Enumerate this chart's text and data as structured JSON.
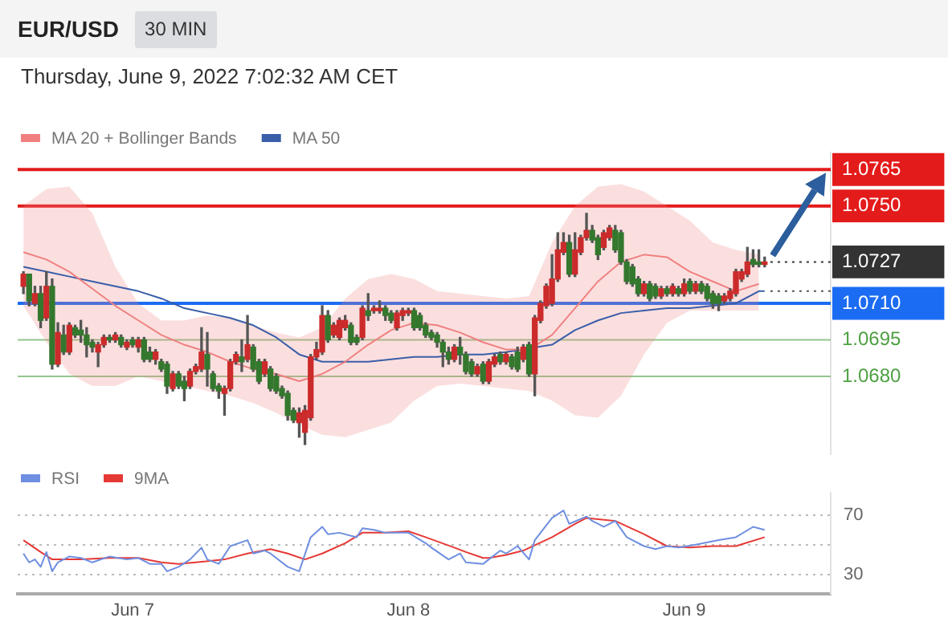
{
  "chart_data": [
    {
      "type": "candlestick",
      "title": "EUR/USD",
      "subtitle": "30 MIN",
      "annotations": [
        "Thursday, June 9, 2022 7:02:32 AM CET"
      ],
      "x": [
        "2022-06-06T14:30",
        "2022-06-06T15:00",
        "2022-06-06T15:30",
        "2022-06-06T16:00",
        "2022-06-06T16:30",
        "2022-06-06T17:00",
        "2022-06-06T17:30",
        "2022-06-06T18:00",
        "2022-06-06T18:30",
        "2022-06-06T19:00",
        "2022-06-06T19:30",
        "2022-06-06T20:00",
        "2022-06-06T20:30",
        "2022-06-06T21:00",
        "2022-06-06T21:30",
        "2022-06-06T22:00",
        "2022-06-06T22:30",
        "2022-06-06T23:00",
        "2022-06-06T23:30",
        "2022-06-07T00:00",
        "2022-06-07T00:30",
        "2022-06-07T01:00",
        "2022-06-07T01:30",
        "2022-06-07T02:00",
        "2022-06-07T02:30",
        "2022-06-07T03:00",
        "2022-06-07T03:30",
        "2022-06-07T04:00",
        "2022-06-07T04:30",
        "2022-06-07T05:00",
        "2022-06-07T05:30",
        "2022-06-07T06:00",
        "2022-06-07T06:30",
        "2022-06-07T07:00",
        "2022-06-07T07:30",
        "2022-06-07T08:00",
        "2022-06-07T08:30",
        "2022-06-07T09:00",
        "2022-06-07T09:30",
        "2022-06-07T10:00",
        "2022-06-07T10:30",
        "2022-06-07T11:00",
        "2022-06-07T11:30",
        "2022-06-07T12:00",
        "2022-06-07T12:30",
        "2022-06-07T13:00",
        "2022-06-07T13:30",
        "2022-06-07T14:00",
        "2022-06-07T14:30",
        "2022-06-07T15:00",
        "2022-06-07T15:30",
        "2022-06-07T16:00",
        "2022-06-07T16:30",
        "2022-06-07T17:00",
        "2022-06-07T17:30",
        "2022-06-07T18:00",
        "2022-06-07T18:30",
        "2022-06-07T19:00",
        "2022-06-07T19:30",
        "2022-06-07T20:00",
        "2022-06-07T20:30",
        "2022-06-07T21:00",
        "2022-06-07T21:30",
        "2022-06-07T22:00",
        "2022-06-07T22:30",
        "2022-06-07T23:00",
        "2022-06-07T23:30",
        "2022-06-08T00:00",
        "2022-06-08T00:30",
        "2022-06-08T01:00",
        "2022-06-08T01:30",
        "2022-06-08T02:00",
        "2022-06-08T02:30",
        "2022-06-08T03:00",
        "2022-06-08T03:30",
        "2022-06-08T04:00",
        "2022-06-08T04:30",
        "2022-06-08T05:00",
        "2022-06-08T05:30",
        "2022-06-08T06:00",
        "2022-06-08T06:30",
        "2022-06-08T07:00",
        "2022-06-08T07:30",
        "2022-06-08T08:00",
        "2022-06-08T08:30",
        "2022-06-08T09:00",
        "2022-06-08T09:30",
        "2022-06-08T10:00",
        "2022-06-08T10:30",
        "2022-06-08T11:00",
        "2022-06-08T11:30",
        "2022-06-08T12:00",
        "2022-06-08T12:30",
        "2022-06-08T13:00",
        "2022-06-08T13:30",
        "2022-06-08T14:00",
        "2022-06-08T14:30",
        "2022-06-08T15:00",
        "2022-06-08T15:30",
        "2022-06-08T16:00",
        "2022-06-08T16:30",
        "2022-06-08T17:00",
        "2022-06-08T17:30",
        "2022-06-08T18:00",
        "2022-06-08T18:30",
        "2022-06-08T19:00",
        "2022-06-08T19:30",
        "2022-06-08T20:00",
        "2022-06-08T20:30",
        "2022-06-08T21:00",
        "2022-06-08T21:30",
        "2022-06-08T22:00",
        "2022-06-08T22:30",
        "2022-06-08T23:00",
        "2022-06-08T23:30",
        "2022-06-09T00:00",
        "2022-06-09T00:30",
        "2022-06-09T01:00",
        "2022-06-09T01:30",
        "2022-06-09T02:00",
        "2022-06-09T02:30",
        "2022-06-09T03:00",
        "2022-06-09T03:30",
        "2022-06-09T04:00",
        "2022-06-09T04:30",
        "2022-06-09T05:00",
        "2022-06-09T05:30",
        "2022-06-09T06:00",
        "2022-06-09T06:30",
        "2022-06-09T07:00"
      ],
      "ohlc": [
        [
          1.0717,
          1.0723,
          1.0714,
          1.0722
        ],
        [
          1.0722,
          1.0722,
          1.0709,
          1.0711
        ],
        [
          1.071,
          1.0717,
          1.0709,
          1.0714
        ],
        [
          1.0714,
          1.0717,
          1.07,
          1.0703
        ],
        [
          1.0704,
          1.0723,
          1.0703,
          1.0717
        ],
        [
          1.0717,
          1.072,
          1.0683,
          1.0685
        ],
        [
          1.0685,
          1.0702,
          1.0684,
          1.0698
        ],
        [
          1.0697,
          1.0701,
          1.0689,
          1.069
        ],
        [
          1.069,
          1.0702,
          1.0689,
          1.0701
        ],
        [
          1.07,
          1.0701,
          1.0696,
          1.0697
        ],
        [
          1.0699,
          1.0703,
          1.0694,
          1.0697
        ],
        [
          1.0697,
          1.07,
          1.0688,
          1.0693
        ],
        [
          1.0694,
          1.0695,
          1.069,
          1.0692
        ],
        [
          1.069,
          1.0694,
          1.0684,
          1.0693
        ],
        [
          1.0693,
          1.0697,
          1.0692,
          1.0696
        ],
        [
          1.0696,
          1.0697,
          1.0694,
          1.0695
        ],
        [
          1.0695,
          1.0698,
          1.0694,
          1.0697
        ],
        [
          1.0696,
          1.0697,
          1.0692,
          1.0693
        ],
        [
          1.0692,
          1.0695,
          1.0691,
          1.0694
        ],
        [
          1.0695,
          1.0696,
          1.0692,
          1.0693
        ],
        [
          1.0692,
          1.0696,
          1.069,
          1.0695
        ],
        [
          1.0695,
          1.0696,
          1.0686,
          1.0687
        ],
        [
          1.069,
          1.0692,
          1.0686,
          1.0687
        ],
        [
          1.0687,
          1.0691,
          1.0685,
          1.069
        ],
        [
          1.0686,
          1.0687,
          1.0682,
          1.0683
        ],
        [
          1.0685,
          1.0686,
          1.0673,
          1.0676
        ],
        [
          1.0675,
          1.0682,
          1.0674,
          1.0681
        ],
        [
          1.0681,
          1.0682,
          1.0675,
          1.0676
        ],
        [
          1.0678,
          1.068,
          1.067,
          1.0675
        ],
        [
          1.0676,
          1.0683,
          1.0675,
          1.0682
        ],
        [
          1.0682,
          1.0685,
          1.0681,
          1.0684
        ],
        [
          1.0683,
          1.07,
          1.0682,
          1.069
        ],
        [
          1.0689,
          1.0698,
          1.0676,
          1.0683
        ],
        [
          1.0681,
          1.0682,
          1.0674,
          1.0675
        ],
        [
          1.0676,
          1.0677,
          1.0671,
          1.0674
        ],
        [
          1.0673,
          1.0676,
          1.0664,
          1.0675
        ],
        [
          1.0675,
          1.0687,
          1.0674,
          1.0686
        ],
        [
          1.0686,
          1.069,
          1.0685,
          1.0689
        ],
        [
          1.0688,
          1.0695,
          1.0682,
          1.0686
        ],
        [
          1.0687,
          1.0705,
          1.0686,
          1.0693
        ],
        [
          1.0692,
          1.0693,
          1.0682,
          1.0683
        ],
        [
          1.0686,
          1.0687,
          1.0677,
          1.0678
        ],
        [
          1.0681,
          1.0687,
          1.068,
          1.0686
        ],
        [
          1.0683,
          1.0684,
          1.0674,
          1.0675
        ],
        [
          1.068,
          1.0681,
          1.0673,
          1.0674
        ],
        [
          1.0675,
          1.0676,
          1.0671,
          1.0672
        ],
        [
          1.0673,
          1.0674,
          1.0662,
          1.0664
        ],
        [
          1.0666,
          1.0667,
          1.0661,
          1.0662
        ],
        [
          1.0661,
          1.0667,
          1.0655,
          1.0665
        ],
        [
          1.0657,
          1.0668,
          1.0652,
          1.0666
        ],
        [
          1.0663,
          1.0689,
          1.0662,
          1.0688
        ],
        [
          1.0688,
          1.0694,
          1.0687,
          1.0691
        ],
        [
          1.069,
          1.0709,
          1.0689,
          1.0705
        ],
        [
          1.0705,
          1.0707,
          1.0694,
          1.0695
        ],
        [
          1.0697,
          1.0702,
          1.0696,
          1.0701
        ],
        [
          1.0696,
          1.0704,
          1.0695,
          1.0703
        ],
        [
          1.07,
          1.0705,
          1.0699,
          1.0703
        ],
        [
          1.0701,
          1.0702,
          1.0693,
          1.0694
        ],
        [
          1.0696,
          1.0697,
          1.0693,
          1.0694
        ],
        [
          1.0696,
          1.0709,
          1.0695,
          1.0708
        ],
        [
          1.0707,
          1.0714,
          1.0703,
          1.0705
        ],
        [
          1.0707,
          1.0709,
          1.0706,
          1.0708
        ],
        [
          1.0707,
          1.0711,
          1.0706,
          1.0708
        ],
        [
          1.0708,
          1.0709,
          1.0703,
          1.0705
        ],
        [
          1.0706,
          1.0707,
          1.0702,
          1.0703
        ],
        [
          1.07,
          1.0707,
          1.0699,
          1.0706
        ],
        [
          1.0705,
          1.0708,
          1.0703,
          1.0707
        ],
        [
          1.0706,
          1.0708,
          1.0705,
          1.0707
        ],
        [
          1.0707,
          1.0708,
          1.0699,
          1.07
        ],
        [
          1.0705,
          1.0706,
          1.0699,
          1.07
        ],
        [
          1.0701,
          1.0702,
          1.0696,
          1.0697
        ],
        [
          1.0698,
          1.0699,
          1.0695,
          1.0696
        ],
        [
          1.0697,
          1.0698,
          1.0692,
          1.0694
        ],
        [
          1.0694,
          1.0695,
          1.0684,
          1.069
        ],
        [
          1.069,
          1.0692,
          1.0685,
          1.0687
        ],
        [
          1.0687,
          1.0693,
          1.0686,
          1.0692
        ],
        [
          1.0692,
          1.0696,
          1.0685,
          1.0689
        ],
        [
          1.0689,
          1.069,
          1.0681,
          1.0682
        ],
        [
          1.0686,
          1.0687,
          1.068,
          1.0681
        ],
        [
          1.0681,
          1.0685,
          1.068,
          1.0684
        ],
        [
          1.0685,
          1.0686,
          1.0677,
          1.0678
        ],
        [
          1.0678,
          1.0687,
          1.0677,
          1.0686
        ],
        [
          1.0685,
          1.0689,
          1.0684,
          1.0688
        ],
        [
          1.0689,
          1.069,
          1.0685,
          1.0686
        ],
        [
          1.0686,
          1.069,
          1.0685,
          1.0689
        ],
        [
          1.0688,
          1.0689,
          1.0683,
          1.0684
        ],
        [
          1.069,
          1.0692,
          1.0682,
          1.0683
        ],
        [
          1.0687,
          1.0693,
          1.0686,
          1.0692
        ],
        [
          1.0693,
          1.0694,
          1.068,
          1.0681
        ],
        [
          1.0681,
          1.0705,
          1.0672,
          1.0704
        ],
        [
          1.0703,
          1.0711,
          1.0702,
          1.071
        ],
        [
          1.0709,
          1.0718,
          1.0708,
          1.0717
        ],
        [
          1.071,
          1.073,
          1.0709,
          1.072
        ],
        [
          1.072,
          1.0739,
          1.0719,
          1.0732
        ],
        [
          1.0731,
          1.0739,
          1.073,
          1.0735
        ],
        [
          1.0735,
          1.0738,
          1.0721,
          1.0722
        ],
        [
          1.0722,
          1.0739,
          1.0721,
          1.0732
        ],
        [
          1.0731,
          1.0738,
          1.073,
          1.0737
        ],
        [
          1.0737,
          1.0747,
          1.0736,
          1.074
        ],
        [
          1.074,
          1.0742,
          1.0735,
          1.0736
        ],
        [
          1.0737,
          1.0738,
          1.0728,
          1.073
        ],
        [
          1.0733,
          1.074,
          1.0732,
          1.0739
        ],
        [
          1.0737,
          1.0742,
          1.0736,
          1.0741
        ],
        [
          1.074,
          1.0742,
          1.0731,
          1.0732
        ],
        [
          1.0739,
          1.074,
          1.0726,
          1.0727
        ],
        [
          1.0727,
          1.0728,
          1.0718,
          1.0719
        ],
        [
          1.0725,
          1.0726,
          1.0717,
          1.0718
        ],
        [
          1.072,
          1.0721,
          1.0713,
          1.0714
        ],
        [
          1.0714,
          1.0719,
          1.0713,
          1.0718
        ],
        [
          1.0718,
          1.0719,
          1.0711,
          1.0712
        ],
        [
          1.0717,
          1.0718,
          1.0712,
          1.0713
        ],
        [
          1.0713,
          1.0717,
          1.0712,
          1.0716
        ],
        [
          1.0716,
          1.0717,
          1.0713,
          1.0714
        ],
        [
          1.0714,
          1.0718,
          1.0713,
          1.0717
        ],
        [
          1.0716,
          1.0717,
          1.0713,
          1.0714
        ],
        [
          1.0714,
          1.072,
          1.0713,
          1.0718
        ],
        [
          1.0719,
          1.072,
          1.0714,
          1.0715
        ],
        [
          1.0715,
          1.0719,
          1.0714,
          1.0718
        ],
        [
          1.0718,
          1.0719,
          1.0714,
          1.0715
        ],
        [
          1.0717,
          1.0718,
          1.0711,
          1.0712
        ],
        [
          1.0714,
          1.0715,
          1.0708,
          1.071
        ],
        [
          1.0713,
          1.0714,
          1.0707,
          1.071
        ],
        [
          1.0711,
          1.0714,
          1.071,
          1.0713
        ],
        [
          1.0712,
          1.0716,
          1.0711,
          1.0715
        ],
        [
          1.0714,
          1.0724,
          1.0713,
          1.0723
        ],
        [
          1.072,
          1.0724,
          1.0719,
          1.0723
        ],
        [
          1.0722,
          1.0733,
          1.0721,
          1.0727
        ],
        [
          1.0728,
          1.0732,
          1.0725,
          1.0726
        ],
        [
          1.0727,
          1.0732,
          1.0725,
          1.0726
        ],
        [
          1.0726,
          1.0729,
          1.0725,
          1.0727
        ]
      ],
      "colors": [
        "#cc2b2b",
        "#34782e",
        "#cc2b2b",
        "#34782e",
        "#cc2b2b",
        "#34782e",
        "#cc2b2b",
        "#34782e",
        "#cc2b2b",
        "#34782e",
        "#34782e",
        "#34782e",
        "#34782e",
        "#cc2b2b",
        "#cc2b2b",
        "#34782e",
        "#cc2b2b",
        "#34782e",
        "#cc2b2b",
        "#34782e",
        "#cc2b2b",
        "#34782e",
        "#34782e",
        "#cc2b2b",
        "#34782e",
        "#34782e",
        "#cc2b2b",
        "#34782e",
        "#34782e",
        "#cc2b2b",
        "#cc2b2b",
        "#cc2b2b",
        "#34782e",
        "#34782e",
        "#34782e",
        "#cc2b2b",
        "#cc2b2b",
        "#cc2b2b",
        "#34782e",
        "#cc2b2b",
        "#34782e",
        "#34782e",
        "#cc2b2b",
        "#34782e",
        "#34782e",
        "#34782e",
        "#34782e",
        "#34782e",
        "#cc2b2b",
        "#cc2b2b",
        "#cc2b2b",
        "#cc2b2b",
        "#cc2b2b",
        "#34782e",
        "#cc2b2b",
        "#cc2b2b",
        "#cc2b2b",
        "#34782e",
        "#34782e",
        "#cc2b2b",
        "#34782e",
        "#cc2b2b",
        "#cc2b2b",
        "#34782e",
        "#34782e",
        "#cc2b2b",
        "#cc2b2b",
        "#cc2b2b",
        "#34782e",
        "#34782e",
        "#34782e",
        "#34782e",
        "#34782e",
        "#34782e",
        "#34782e",
        "#cc2b2b",
        "#34782e",
        "#34782e",
        "#34782e",
        "#cc2b2b",
        "#34782e",
        "#cc2b2b",
        "#cc2b2b",
        "#34782e",
        "#cc2b2b",
        "#34782e",
        "#34782e",
        "#cc2b2b",
        "#34782e",
        "#cc2b2b",
        "#cc2b2b",
        "#cc2b2b",
        "#cc2b2b",
        "#cc2b2b",
        "#cc2b2b",
        "#34782e",
        "#cc2b2b",
        "#cc2b2b",
        "#cc2b2b",
        "#34782e",
        "#34782e",
        "#cc2b2b",
        "#cc2b2b",
        "#34782e",
        "#34782e",
        "#34782e",
        "#34782e",
        "#34782e",
        "#cc2b2b",
        "#34782e",
        "#34782e",
        "#cc2b2b",
        "#34782e",
        "#cc2b2b",
        "#34782e",
        "#cc2b2b",
        "#34782e",
        "#cc2b2b",
        "#34782e",
        "#34782e",
        "#34782e",
        "#34782e",
        "#cc2b2b",
        "#cc2b2b",
        "#cc2b2b",
        "#cc2b2b",
        "#cc2b2b",
        "#34782e",
        "#34782e",
        "#cc2b2b"
      ],
      "series": [
        {
          "name": "MA 20 + Bollinger Bands",
          "type": "line",
          "color": "#f08080",
          "x": [
            "2022-06-06T14:30",
            "2022-06-06T16:30",
            "2022-06-06T18:30",
            "2022-06-06T20:30",
            "2022-06-06T22:30",
            "2022-06-07T00:30",
            "2022-06-07T02:30",
            "2022-06-07T04:30",
            "2022-06-07T06:30",
            "2022-06-07T08:30",
            "2022-06-07T10:30",
            "2022-06-07T12:30",
            "2022-06-07T14:30",
            "2022-06-07T16:30",
            "2022-06-07T18:30",
            "2022-06-07T20:30",
            "2022-06-07T22:30",
            "2022-06-08T00:30",
            "2022-06-08T02:30",
            "2022-06-08T04:30",
            "2022-06-08T06:30",
            "2022-06-08T08:30",
            "2022-06-08T10:30",
            "2022-06-08T12:30",
            "2022-06-08T14:30",
            "2022-06-08T16:30",
            "2022-06-08T18:30",
            "2022-06-08T20:30",
            "2022-06-08T22:30",
            "2022-06-09T00:30",
            "2022-06-09T02:30",
            "2022-06-09T04:30",
            "2022-06-09T06:30"
          ],
          "values": [
            1.0731,
            1.0728,
            1.0723,
            1.0716,
            1.0709,
            1.0703,
            1.0697,
            1.0693,
            1.069,
            1.0686,
            1.0683,
            1.0681,
            1.0678,
            1.0681,
            1.0686,
            1.0693,
            1.0699,
            1.0702,
            1.0701,
            1.0698,
            1.0694,
            1.0691,
            1.0691,
            1.0697,
            1.0708,
            1.0719,
            1.0727,
            1.073,
            1.0729,
            1.0723,
            1.0719,
            1.0715,
            1.0718
          ],
          "upper": [
            1.075,
            1.0757,
            1.0758,
            1.0747,
            1.0725,
            1.071,
            1.0703,
            1.0703,
            1.0705,
            1.0704,
            1.0701,
            1.0698,
            1.0696,
            1.07,
            1.0712,
            1.072,
            1.0722,
            1.072,
            1.0715,
            1.0714,
            1.0713,
            1.0712,
            1.0713,
            1.0735,
            1.075,
            1.0758,
            1.0759,
            1.0756,
            1.075,
            1.0744,
            1.0735,
            1.0732,
            1.073
          ],
          "lower": [
            1.0709,
            1.0694,
            1.0681,
            1.0676,
            1.0676,
            1.068,
            1.0678,
            1.0676,
            1.0674,
            1.0672,
            1.0669,
            1.0665,
            1.066,
            1.0656,
            1.0655,
            1.0658,
            1.0661,
            1.067,
            1.0676,
            1.0677,
            1.0676,
            1.0675,
            1.0674,
            1.067,
            1.0664,
            1.0663,
            1.0672,
            1.0689,
            1.0702,
            1.0707,
            1.0707,
            1.0707,
            1.0707
          ]
        },
        {
          "name": "MA 50",
          "type": "line",
          "color": "#3a5ea8",
          "x": [
            "2022-06-06T14:30",
            "2022-06-06T16:30",
            "2022-06-06T18:30",
            "2022-06-06T20:30",
            "2022-06-06T22:30",
            "2022-06-07T00:30",
            "2022-06-07T02:30",
            "2022-06-07T04:30",
            "2022-06-07T06:30",
            "2022-06-07T08:30",
            "2022-06-07T10:30",
            "2022-06-07T12:30",
            "2022-06-07T14:30",
            "2022-06-07T16:30",
            "2022-06-07T18:30",
            "2022-06-07T20:30",
            "2022-06-07T22:30",
            "2022-06-08T00:30",
            "2022-06-08T02:30",
            "2022-06-08T04:30",
            "2022-06-08T06:30",
            "2022-06-08T08:30",
            "2022-06-08T12:30",
            "2022-06-08T14:30",
            "2022-06-08T16:30",
            "2022-06-08T18:30",
            "2022-06-08T20:30",
            "2022-06-08T22:30",
            "2022-06-09T00:30",
            "2022-06-09T02:30",
            "2022-06-09T04:30",
            "2022-06-09T06:30",
            "2022-06-09T07:00"
          ],
          "values": [
            1.0725,
            1.0723,
            1.0721,
            1.0719,
            1.0717,
            1.0715,
            1.0712,
            1.0708,
            1.0706,
            1.0704,
            1.0701,
            1.0696,
            1.0689,
            1.0686,
            1.0686,
            1.0686,
            1.0687,
            1.0688,
            1.0688,
            1.0689,
            1.0689,
            1.069,
            1.0693,
            1.0699,
            1.0703,
            1.0706,
            1.0707,
            1.0708,
            1.0708,
            1.0709,
            1.071,
            1.0715,
            1.0715
          ]
        },
        {
          "type": "line",
          "color": "#333333",
          "line_style": "dotted",
          "x": [
            "2022-06-09T07:30",
            "2022-06-09T12:45"
          ],
          "values": [
            1.0727,
            1.0727
          ]
        },
        {
          "type": "line",
          "color": "#555555",
          "line_style": "dotted",
          "x": [
            "2022-06-09T07:30",
            "2022-06-09T12:45"
          ],
          "values": [
            1.0715,
            1.0715
          ]
        }
      ],
      "xlim": [
        "2022-06-06T14:00",
        "2022-06-09T12:45"
      ],
      "ylim": [
        1.0648,
        1.0772
      ],
      "yticks": [
        {
          "value": 1.068,
          "label": "1.0680"
        },
        {
          "value": 1.0695,
          "label": "1.0695"
        },
        {
          "value": 1.071,
          "label": "1.0710"
        },
        {
          "value": 1.0727,
          "label": "1.0727"
        },
        {
          "value": 1.075,
          "label": "1.0750"
        },
        {
          "value": 1.0765,
          "label": "1.0765"
        }
      ],
      "ref_lines": [
        {
          "axis": "y",
          "value": 1.0765,
          "color": "#e31b1b"
        },
        {
          "axis": "y",
          "value": 1.075,
          "color": "#e31b1b"
        },
        {
          "axis": "y",
          "value": 1.071,
          "color": "#1b6cf2"
        },
        {
          "axis": "y",
          "value": 1.0695,
          "color": "#4fa043"
        },
        {
          "axis": "y",
          "value": 1.068,
          "color": "#4fa043"
        }
      ],
      "legend": "top left",
      "tick_labels": "y"
    },
    {
      "type": "line",
      "series": [
        {
          "name": "RSI",
          "color": "#6f8fe0",
          "x": [
            "2022-06-06T14:30",
            "2022-06-06T15:00",
            "2022-06-06T15:30",
            "2022-06-06T16:00",
            "2022-06-06T16:30",
            "2022-06-06T17:00",
            "2022-06-06T17:30",
            "2022-06-06T18:30",
            "2022-06-06T19:30",
            "2022-06-06T20:30",
            "2022-06-06T22:00",
            "2022-06-06T23:30",
            "2022-06-07T00:30",
            "2022-06-07T01:30",
            "2022-06-07T02:30",
            "2022-06-07T03:00",
            "2022-06-07T04:00",
            "2022-06-07T05:00",
            "2022-06-07T06:00",
            "2022-06-07T06:30",
            "2022-06-07T07:30",
            "2022-06-07T08:30",
            "2022-06-07T10:00",
            "2022-06-07T10:30",
            "2022-06-07T11:30",
            "2022-06-07T12:00",
            "2022-06-07T13:30",
            "2022-06-07T14:30",
            "2022-06-07T15:30",
            "2022-06-07T16:30",
            "2022-06-07T17:00",
            "2022-06-07T18:00",
            "2022-06-07T19:30",
            "2022-06-07T20:00",
            "2022-06-07T21:00",
            "2022-06-07T22:00",
            "2022-06-07T23:00",
            "2022-06-08T00:00",
            "2022-06-08T01:30",
            "2022-06-08T02:00",
            "2022-06-08T03:30",
            "2022-06-08T04:30",
            "2022-06-08T05:00",
            "2022-06-08T06:30",
            "2022-06-08T07:00",
            "2022-06-08T08:00",
            "2022-06-08T08:30",
            "2022-06-08T09:30",
            "2022-06-08T10:30",
            "2022-06-08T11:00",
            "2022-06-08T12:30",
            "2022-06-08T13:30",
            "2022-06-08T14:00",
            "2022-06-08T15:30",
            "2022-06-08T16:00",
            "2022-06-08T17:00",
            "2022-06-08T18:00",
            "2022-06-08T19:00",
            "2022-06-08T20:30",
            "2022-06-08T21:30",
            "2022-06-08T22:30",
            "2022-06-08T23:30",
            "2022-06-09T01:00",
            "2022-06-09T03:00",
            "2022-06-09T04:30",
            "2022-06-09T06:00",
            "2022-06-09T07:00"
          ],
          "values": [
            44,
            38,
            40,
            35,
            45,
            32,
            38,
            42,
            41,
            38,
            42,
            40,
            41,
            37,
            37,
            32,
            35,
            40,
            48,
            40,
            37,
            49,
            53,
            44,
            46,
            44,
            35,
            32,
            55,
            62,
            57,
            58,
            55,
            61,
            60,
            58,
            58,
            58,
            51,
            48,
            40,
            44,
            38,
            37,
            40,
            46,
            44,
            49,
            40,
            53,
            68,
            73,
            64,
            69,
            66,
            62,
            66,
            55,
            49,
            47,
            49,
            48,
            50,
            53,
            55,
            62,
            60
          ]
        },
        {
          "name": "9MA",
          "color": "#e53935",
          "x": [
            "2022-06-06T14:30",
            "2022-06-06T16:00",
            "2022-06-06T17:00",
            "2022-06-06T19:30",
            "2022-06-06T22:00",
            "2022-06-07T00:30",
            "2022-06-07T02:30",
            "2022-06-07T04:00",
            "2022-06-07T05:30",
            "2022-06-07T08:00",
            "2022-06-07T10:00",
            "2022-06-07T12:00",
            "2022-06-07T13:30",
            "2022-06-07T15:00",
            "2022-06-07T16:30",
            "2022-06-07T18:30",
            "2022-06-07T20:00",
            "2022-06-07T22:00",
            "2022-06-08T00:00",
            "2022-06-08T01:30",
            "2022-06-08T04:00",
            "2022-06-08T05:00",
            "2022-06-08T06:30",
            "2022-06-08T07:00",
            "2022-06-08T08:30",
            "2022-06-08T10:00",
            "2022-06-08T12:30",
            "2022-06-08T14:30",
            "2022-06-08T15:30",
            "2022-06-08T18:00",
            "2022-06-08T20:30",
            "2022-06-08T22:30",
            "2022-06-09T00:30",
            "2022-06-09T02:30",
            "2022-06-09T04:30",
            "2022-06-09T07:00"
          ],
          "values": [
            53,
            45,
            40,
            40,
            41,
            41,
            38,
            37,
            38,
            40,
            44,
            47,
            44,
            40,
            44,
            51,
            58,
            58,
            59,
            55,
            48,
            45,
            41,
            41,
            43,
            46,
            55,
            64,
            68,
            66,
            57,
            49,
            48,
            49,
            49,
            55
          ]
        }
      ],
      "xlim": [
        "2022-06-06T14:00",
        "2022-06-09T12:45"
      ],
      "xticks": [
        {
          "value": "2022-06-07T00:00",
          "label": "Jun 7"
        },
        {
          "value": "2022-06-08T00:00",
          "label": "Jun 8"
        },
        {
          "value": "2022-06-09T00:00",
          "label": "Jun 9"
        }
      ],
      "ylim": [
        17,
        85
      ],
      "yticks": [
        30,
        {
          "value": 50,
          "label": null
        },
        70
      ],
      "grid": "y",
      "legend": "top left"
    }
  ]
}
